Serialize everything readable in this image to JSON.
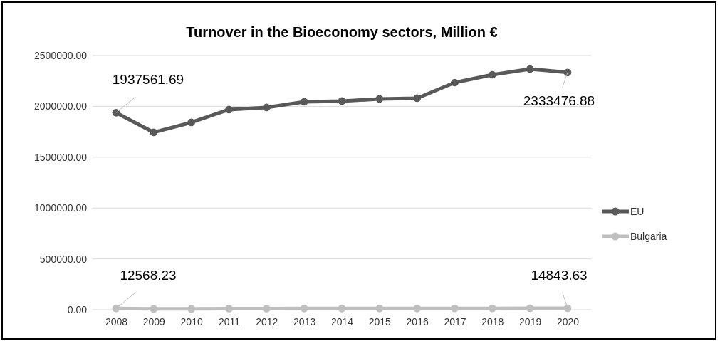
{
  "chart_data": {
    "type": "line",
    "title": "Turnover in the Bioeconomy sectors, Million €",
    "categories": [
      "2008",
      "2009",
      "2010",
      "2011",
      "2012",
      "2013",
      "2014",
      "2015",
      "2016",
      "2017",
      "2018",
      "2019",
      "2020"
    ],
    "series": [
      {
        "name": "EU",
        "color": "#595959",
        "values": [
          1937561.69,
          1744000,
          1842000,
          1968000,
          1989000,
          2045000,
          2052000,
          2073000,
          2080000,
          2234000,
          2311000,
          2367000,
          2333476.88
        ],
        "value_labels": [
          "1937561.69",
          null,
          null,
          null,
          null,
          null,
          null,
          null,
          null,
          null,
          null,
          null,
          "2333476.88"
        ]
      },
      {
        "name": "Bulgaria",
        "color": "#bfbfbf",
        "values": [
          12568.23,
          8000,
          8000,
          11000,
          11000,
          12000,
          12000,
          12000,
          12000,
          13000,
          13000,
          14000,
          14843.63
        ],
        "value_labels": [
          "12568.23",
          null,
          null,
          null,
          null,
          null,
          null,
          null,
          null,
          null,
          null,
          null,
          "14843.63"
        ]
      }
    ],
    "ylim": [
      0,
      2500000
    ],
    "yticks": [
      {
        "value": 0,
        "label": "0.00"
      },
      {
        "value": 500000,
        "label": "500000.00"
      },
      {
        "value": 1000000,
        "label": "1000000.00"
      },
      {
        "value": 1500000,
        "label": "1500000.00"
      },
      {
        "value": 2000000,
        "label": "2000000.00"
      },
      {
        "value": 2500000,
        "label": "2500000.00"
      }
    ],
    "grid": "y",
    "legend": "right",
    "marker": "circle",
    "line_style": "solid"
  }
}
